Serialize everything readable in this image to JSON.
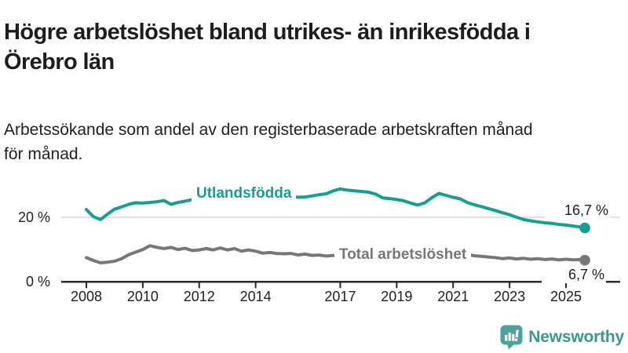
{
  "header": {
    "title": "Högre arbetslöshet bland utrikes- än inrikesfödda i\nÖrebro län",
    "subtitle": "Arbetssökande som andel av den registerbaserade arbetskraften månad\nför månad."
  },
  "chart_data": {
    "type": "line",
    "unit": "%",
    "x_range": [
      2008,
      2025.67
    ],
    "y_range": [
      0,
      30
    ],
    "grid": "single horizontal gridline at 20 %",
    "legend_position": "inline labels on lines",
    "x_ticks": [
      "2008",
      "2010",
      "2012",
      "2014",
      "2017",
      "2019",
      "2021",
      "2023",
      "2025"
    ],
    "y_axis_labels": [
      {
        "value": 20,
        "label": "20 %"
      },
      {
        "value": 0,
        "label": "0 %"
      }
    ],
    "axis_color": "#2b2b29",
    "gridline_color": "#d9d9d9",
    "series": [
      {
        "name": "Utlandsfödda",
        "color": "#149e94",
        "end_label": "16,7 %",
        "end_value": 16.7,
        "points": [
          [
            2008.0,
            22.4
          ],
          [
            2008.25,
            20.2
          ],
          [
            2008.5,
            19.3
          ],
          [
            2008.75,
            21.0
          ],
          [
            2009.0,
            22.5
          ],
          [
            2009.25,
            23.2
          ],
          [
            2009.5,
            24.0
          ],
          [
            2009.75,
            24.5
          ],
          [
            2010.0,
            24.4
          ],
          [
            2010.25,
            24.6
          ],
          [
            2010.5,
            24.8
          ],
          [
            2010.75,
            25.2
          ],
          [
            2011.0,
            24.0
          ],
          [
            2011.25,
            24.6
          ],
          [
            2011.5,
            25.0
          ],
          [
            2011.75,
            25.5
          ],
          [
            2012.0,
            26.0
          ],
          [
            2012.25,
            26.1
          ],
          [
            2012.5,
            25.8
          ],
          [
            2012.75,
            26.0
          ],
          [
            2013.0,
            26.2
          ],
          [
            2013.25,
            25.9
          ],
          [
            2013.5,
            26.1
          ],
          [
            2013.75,
            26.3
          ],
          [
            2014.0,
            26.0
          ],
          [
            2014.25,
            26.2
          ],
          [
            2014.5,
            26.4
          ],
          [
            2014.75,
            26.1
          ],
          [
            2015.0,
            26.3
          ],
          [
            2015.25,
            26.5
          ],
          [
            2015.5,
            26.2
          ],
          [
            2015.75,
            26.3
          ],
          [
            2016.0,
            26.6
          ],
          [
            2016.25,
            27.0
          ],
          [
            2016.5,
            27.3
          ],
          [
            2016.75,
            28.2
          ],
          [
            2017.0,
            28.8
          ],
          [
            2017.25,
            28.4
          ],
          [
            2017.5,
            28.2
          ],
          [
            2017.75,
            28.0
          ],
          [
            2018.0,
            27.8
          ],
          [
            2018.25,
            27.2
          ],
          [
            2018.5,
            26.0
          ],
          [
            2018.75,
            25.8
          ],
          [
            2019.0,
            25.5
          ],
          [
            2019.25,
            25.1
          ],
          [
            2019.5,
            24.4
          ],
          [
            2019.75,
            23.8
          ],
          [
            2020.0,
            24.5
          ],
          [
            2020.25,
            26.1
          ],
          [
            2020.5,
            27.4
          ],
          [
            2020.75,
            26.8
          ],
          [
            2021.0,
            26.2
          ],
          [
            2021.25,
            25.7
          ],
          [
            2021.5,
            24.6
          ],
          [
            2021.75,
            23.9
          ],
          [
            2022.0,
            23.3
          ],
          [
            2022.25,
            22.7
          ],
          [
            2022.5,
            22.1
          ],
          [
            2022.75,
            21.4
          ],
          [
            2023.0,
            20.8
          ],
          [
            2023.25,
            20.0
          ],
          [
            2023.5,
            19.3
          ],
          [
            2023.75,
            18.9
          ],
          [
            2024.0,
            18.6
          ],
          [
            2024.25,
            18.3
          ],
          [
            2024.5,
            18.1
          ],
          [
            2024.75,
            17.8
          ],
          [
            2025.0,
            17.6
          ],
          [
            2025.25,
            17.3
          ],
          [
            2025.5,
            17.0
          ],
          [
            2025.67,
            16.7
          ]
        ]
      },
      {
        "name": "Total arbetslöshet",
        "color": "#787679",
        "end_label": "6,7 %",
        "end_value": 6.7,
        "points": [
          [
            2008.0,
            7.5
          ],
          [
            2008.25,
            6.6
          ],
          [
            2008.5,
            5.9
          ],
          [
            2008.75,
            6.1
          ],
          [
            2009.0,
            6.4
          ],
          [
            2009.25,
            7.2
          ],
          [
            2009.5,
            8.4
          ],
          [
            2009.75,
            9.2
          ],
          [
            2010.0,
            10.0
          ],
          [
            2010.25,
            11.2
          ],
          [
            2010.5,
            10.7
          ],
          [
            2010.75,
            10.3
          ],
          [
            2011.0,
            10.7
          ],
          [
            2011.25,
            10.0
          ],
          [
            2011.5,
            10.4
          ],
          [
            2011.75,
            9.7
          ],
          [
            2012.0,
            9.9
          ],
          [
            2012.25,
            10.3
          ],
          [
            2012.5,
            9.9
          ],
          [
            2012.75,
            10.5
          ],
          [
            2013.0,
            9.9
          ],
          [
            2013.25,
            10.3
          ],
          [
            2013.5,
            9.5
          ],
          [
            2013.75,
            9.9
          ],
          [
            2014.0,
            9.5
          ],
          [
            2014.25,
            8.9
          ],
          [
            2014.5,
            9.1
          ],
          [
            2014.75,
            8.8
          ],
          [
            2015.0,
            8.7
          ],
          [
            2015.25,
            8.8
          ],
          [
            2015.5,
            8.3
          ],
          [
            2015.75,
            8.6
          ],
          [
            2016.0,
            8.2
          ],
          [
            2016.25,
            8.3
          ],
          [
            2016.5,
            8.0
          ],
          [
            2016.75,
            8.2
          ],
          [
            2017.0,
            8.1
          ],
          [
            2017.25,
            8.2
          ],
          [
            2017.5,
            8.0
          ],
          [
            2017.75,
            7.9
          ],
          [
            2018.0,
            7.8
          ],
          [
            2018.25,
            7.9
          ],
          [
            2018.5,
            7.7
          ],
          [
            2018.75,
            7.8
          ],
          [
            2019.0,
            7.7
          ],
          [
            2019.25,
            7.8
          ],
          [
            2019.5,
            7.9
          ],
          [
            2019.75,
            8.0
          ],
          [
            2020.0,
            8.3
          ],
          [
            2020.25,
            9.5
          ],
          [
            2020.5,
            10.0
          ],
          [
            2020.75,
            9.7
          ],
          [
            2021.0,
            9.4
          ],
          [
            2021.25,
            9.0
          ],
          [
            2021.5,
            8.5
          ],
          [
            2021.75,
            8.1
          ],
          [
            2022.0,
            7.9
          ],
          [
            2022.25,
            7.7
          ],
          [
            2022.5,
            7.5
          ],
          [
            2022.75,
            7.2
          ],
          [
            2023.0,
            7.4
          ],
          [
            2023.25,
            7.1
          ],
          [
            2023.5,
            7.3
          ],
          [
            2023.75,
            7.0
          ],
          [
            2024.0,
            7.2
          ],
          [
            2024.25,
            6.9
          ],
          [
            2024.5,
            7.1
          ],
          [
            2024.75,
            6.8
          ],
          [
            2025.0,
            7.0
          ],
          [
            2025.25,
            6.8
          ],
          [
            2025.5,
            6.9
          ],
          [
            2025.67,
            6.7
          ]
        ]
      }
    ]
  },
  "branding": {
    "logo_text": "Newsworthy",
    "logo_text_color": "#3e968f",
    "logo_icon_color": "#4ba39b",
    "logo_icon": "bar-chart-speech-bubble-icon"
  }
}
